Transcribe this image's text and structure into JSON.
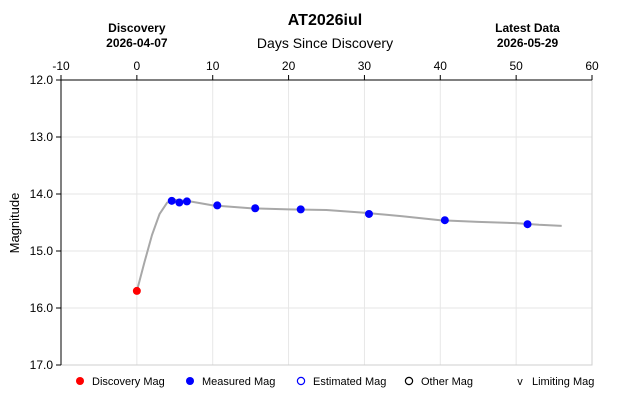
{
  "chart_data": {
    "type": "line",
    "title": "AT2026iul",
    "subtitle": "Days Since Discovery",
    "ylabel": "Magnitude",
    "xlim": [
      -10,
      60
    ],
    "ylim": [
      12.0,
      17.0
    ],
    "y_inverted": true,
    "grid": true,
    "x_ticks": [
      "-10",
      "0",
      "10",
      "20",
      "30",
      "40",
      "50",
      "60"
    ],
    "y_ticks": [
      "12.0",
      "13.0",
      "14.0",
      "15.0",
      "16.0",
      "17.0"
    ],
    "discovery_header": {
      "label": "Discovery",
      "date": "2026-04-07",
      "x": 0
    },
    "latest_header": {
      "label": "Latest Data",
      "date": "2026-05-29",
      "x": 51.5
    },
    "discovery_points": [
      {
        "x": 0,
        "y": 15.7
      }
    ],
    "measured_points": [
      {
        "x": 4.6,
        "y": 14.12
      },
      {
        "x": 5.6,
        "y": 14.15
      },
      {
        "x": 6.6,
        "y": 14.13
      },
      {
        "x": 10.6,
        "y": 14.2
      },
      {
        "x": 15.6,
        "y": 14.25
      },
      {
        "x": 21.6,
        "y": 14.27
      },
      {
        "x": 30.6,
        "y": 14.35
      },
      {
        "x": 40.6,
        "y": 14.46
      },
      {
        "x": 51.5,
        "y": 14.53
      }
    ],
    "model_curve": [
      {
        "x": 0,
        "y": 15.7
      },
      {
        "x": 1,
        "y": 15.2
      },
      {
        "x": 2,
        "y": 14.72
      },
      {
        "x": 3,
        "y": 14.35
      },
      {
        "x": 4,
        "y": 14.15
      },
      {
        "x": 5,
        "y": 14.1
      },
      {
        "x": 7,
        "y": 14.13
      },
      {
        "x": 10,
        "y": 14.2
      },
      {
        "x": 15,
        "y": 14.25
      },
      {
        "x": 20,
        "y": 14.27
      },
      {
        "x": 25,
        "y": 14.28
      },
      {
        "x": 30,
        "y": 14.33
      },
      {
        "x": 35,
        "y": 14.39
      },
      {
        "x": 40,
        "y": 14.46
      },
      {
        "x": 45,
        "y": 14.49
      },
      {
        "x": 50,
        "y": 14.51
      },
      {
        "x": 53,
        "y": 14.54
      },
      {
        "x": 56,
        "y": 14.56
      }
    ],
    "colors": {
      "discovery": "#ff0000",
      "measured": "#0000ff",
      "estimated": "#0000ff",
      "other": "#000000",
      "curve": "#a8a8a8",
      "grid": "#e6e6e6",
      "axis": "#000000"
    },
    "legend": {
      "placement": "bottom",
      "items": [
        {
          "label": "Discovery Mag",
          "marker": "filled-circle",
          "color": "#ff0000"
        },
        {
          "label": "Measured Mag",
          "marker": "filled-circle",
          "color": "#0000ff"
        },
        {
          "label": "Estimated Mag",
          "marker": "open-circle",
          "color": "#0000ff"
        },
        {
          "label": "Other Mag",
          "marker": "open-circle",
          "color": "#000000"
        },
        {
          "label": "Limiting Mag",
          "marker": "v",
          "color": "#000000"
        }
      ]
    }
  }
}
